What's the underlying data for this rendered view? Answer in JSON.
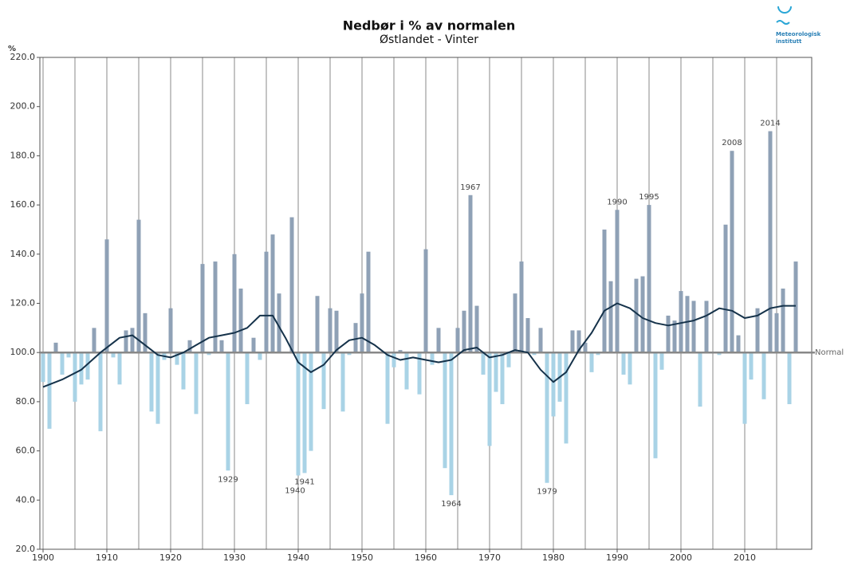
{
  "chart_data": {
    "type": "bar",
    "title": "Nedbør i % av normalen",
    "subtitle": "Østlandet - Vinter",
    "y_unit": "%",
    "logo": [
      "Meteorologisk",
      "institutt"
    ],
    "x": [
      1900,
      1901,
      1902,
      1903,
      1904,
      1905,
      1906,
      1907,
      1908,
      1909,
      1910,
      1911,
      1912,
      1913,
      1914,
      1915,
      1916,
      1917,
      1918,
      1919,
      1920,
      1921,
      1922,
      1923,
      1924,
      1925,
      1926,
      1927,
      1928,
      1929,
      1930,
      1931,
      1932,
      1933,
      1934,
      1935,
      1936,
      1937,
      1938,
      1939,
      1940,
      1941,
      1942,
      1943,
      1944,
      1945,
      1946,
      1947,
      1948,
      1949,
      1950,
      1951,
      1952,
      1953,
      1954,
      1955,
      1956,
      1957,
      1958,
      1959,
      1960,
      1961,
      1962,
      1963,
      1964,
      1965,
      1966,
      1967,
      1968,
      1969,
      1970,
      1971,
      1972,
      1973,
      1974,
      1975,
      1976,
      1977,
      1978,
      1979,
      1980,
      1981,
      1982,
      1983,
      1984,
      1985,
      1986,
      1987,
      1988,
      1989,
      1990,
      1991,
      1992,
      1993,
      1994,
      1995,
      1996,
      1997,
      1998,
      1999,
      2000,
      2001,
      2002,
      2003,
      2004,
      2005,
      2006,
      2007,
      2008,
      2009,
      2010,
      2011,
      2012,
      2013,
      2014,
      2015,
      2016,
      2017,
      2018
    ],
    "values": [
      88,
      69,
      104,
      91,
      98,
      80,
      87,
      89,
      110,
      68,
      146,
      98,
      87,
      109,
      110,
      154,
      116,
      76,
      71,
      97,
      118,
      95,
      85,
      105,
      75,
      136,
      99,
      137,
      105,
      52,
      140,
      126,
      79,
      106,
      97,
      141,
      148,
      124,
      100,
      155,
      50,
      51,
      60,
      123,
      77,
      118,
      117,
      76,
      99,
      112,
      124,
      141,
      100,
      100,
      71,
      94,
      101,
      85,
      100,
      83,
      142,
      95,
      110,
      53,
      42,
      110,
      117,
      164,
      119,
      91,
      62,
      84,
      79,
      94,
      124,
      137,
      114,
      99,
      110,
      47,
      74,
      80,
      63,
      109,
      109,
      104,
      92,
      99,
      150,
      129,
      158,
      91,
      87,
      130,
      131,
      160,
      57,
      93,
      115,
      113,
      125,
      123,
      121,
      78,
      121,
      100,
      99,
      152,
      182,
      107,
      71,
      89,
      118,
      81,
      190,
      116,
      126,
      79,
      137
    ],
    "color_above": "#8fa1b6",
    "color_below": "#a9d3e6",
    "reference_line": {
      "value": 100,
      "label": "Normal"
    },
    "trend": {
      "color": "#15324a",
      "x": [
        1900,
        1903,
        1906,
        1909,
        1912,
        1914,
        1916,
        1918,
        1920,
        1922,
        1924,
        1926,
        1928,
        1930,
        1932,
        1934,
        1936,
        1938,
        1940,
        1942,
        1944,
        1946,
        1948,
        1950,
        1952,
        1954,
        1956,
        1958,
        1960,
        1962,
        1964,
        1966,
        1968,
        1970,
        1972,
        1974,
        1976,
        1978,
        1980,
        1982,
        1984,
        1986,
        1988,
        1990,
        1992,
        1994,
        1996,
        1998,
        2000,
        2002,
        2004,
        2006,
        2008,
        2010,
        2012,
        2014,
        2016,
        2018
      ],
      "values": [
        86,
        89,
        93,
        100,
        106,
        107,
        103,
        99,
        98,
        100,
        103,
        106,
        107,
        108,
        110,
        115,
        115,
        106,
        96,
        92,
        95,
        101,
        105,
        106,
        103,
        99,
        97,
        98,
        97,
        96,
        97,
        101,
        102,
        98,
        99,
        101,
        100,
        93,
        88,
        92,
        101,
        108,
        117,
        120,
        118,
        114,
        112,
        111,
        112,
        113,
        115,
        118,
        117,
        114,
        115,
        118,
        119,
        119
      ]
    },
    "annotations": [
      {
        "text": "1929",
        "x": 1929
      },
      {
        "text": "1940",
        "x": 1940
      },
      {
        "text": "1941",
        "x": 1941
      },
      {
        "text": "1964",
        "x": 1964
      },
      {
        "text": "1967",
        "x": 1967
      },
      {
        "text": "1979",
        "x": 1979
      },
      {
        "text": "1990",
        "x": 1990
      },
      {
        "text": "1995",
        "x": 1995
      },
      {
        "text": "2008",
        "x": 2008
      },
      {
        "text": "2014",
        "x": 2014
      }
    ],
    "xlim": [
      1899.5,
      2020.5
    ],
    "xticks": [
      1900,
      1910,
      1920,
      1930,
      1940,
      1950,
      1960,
      1970,
      1980,
      1990,
      2000,
      2010
    ],
    "x_minor_ticks": [
      1905,
      1915,
      1925,
      1935,
      1945,
      1955,
      1965,
      1975,
      1985,
      1995,
      2005,
      2015
    ],
    "ylim": [
      20,
      220
    ],
    "yticks": [
      {
        "value": 20,
        "label": "20.0"
      },
      {
        "value": 40,
        "label": "40.0"
      },
      {
        "value": 60,
        "label": "60.0"
      },
      {
        "value": 80,
        "label": "80.0"
      },
      {
        "value": 100,
        "label": "100.0"
      },
      {
        "value": 120,
        "label": "120.0"
      },
      {
        "value": 140,
        "label": "140.0"
      },
      {
        "value": 160,
        "label": "160.0"
      },
      {
        "value": 180,
        "label": "180.0"
      },
      {
        "value": 200,
        "label": "200.0"
      },
      {
        "value": 220,
        "label": "220.0"
      }
    ],
    "grid": true
  }
}
